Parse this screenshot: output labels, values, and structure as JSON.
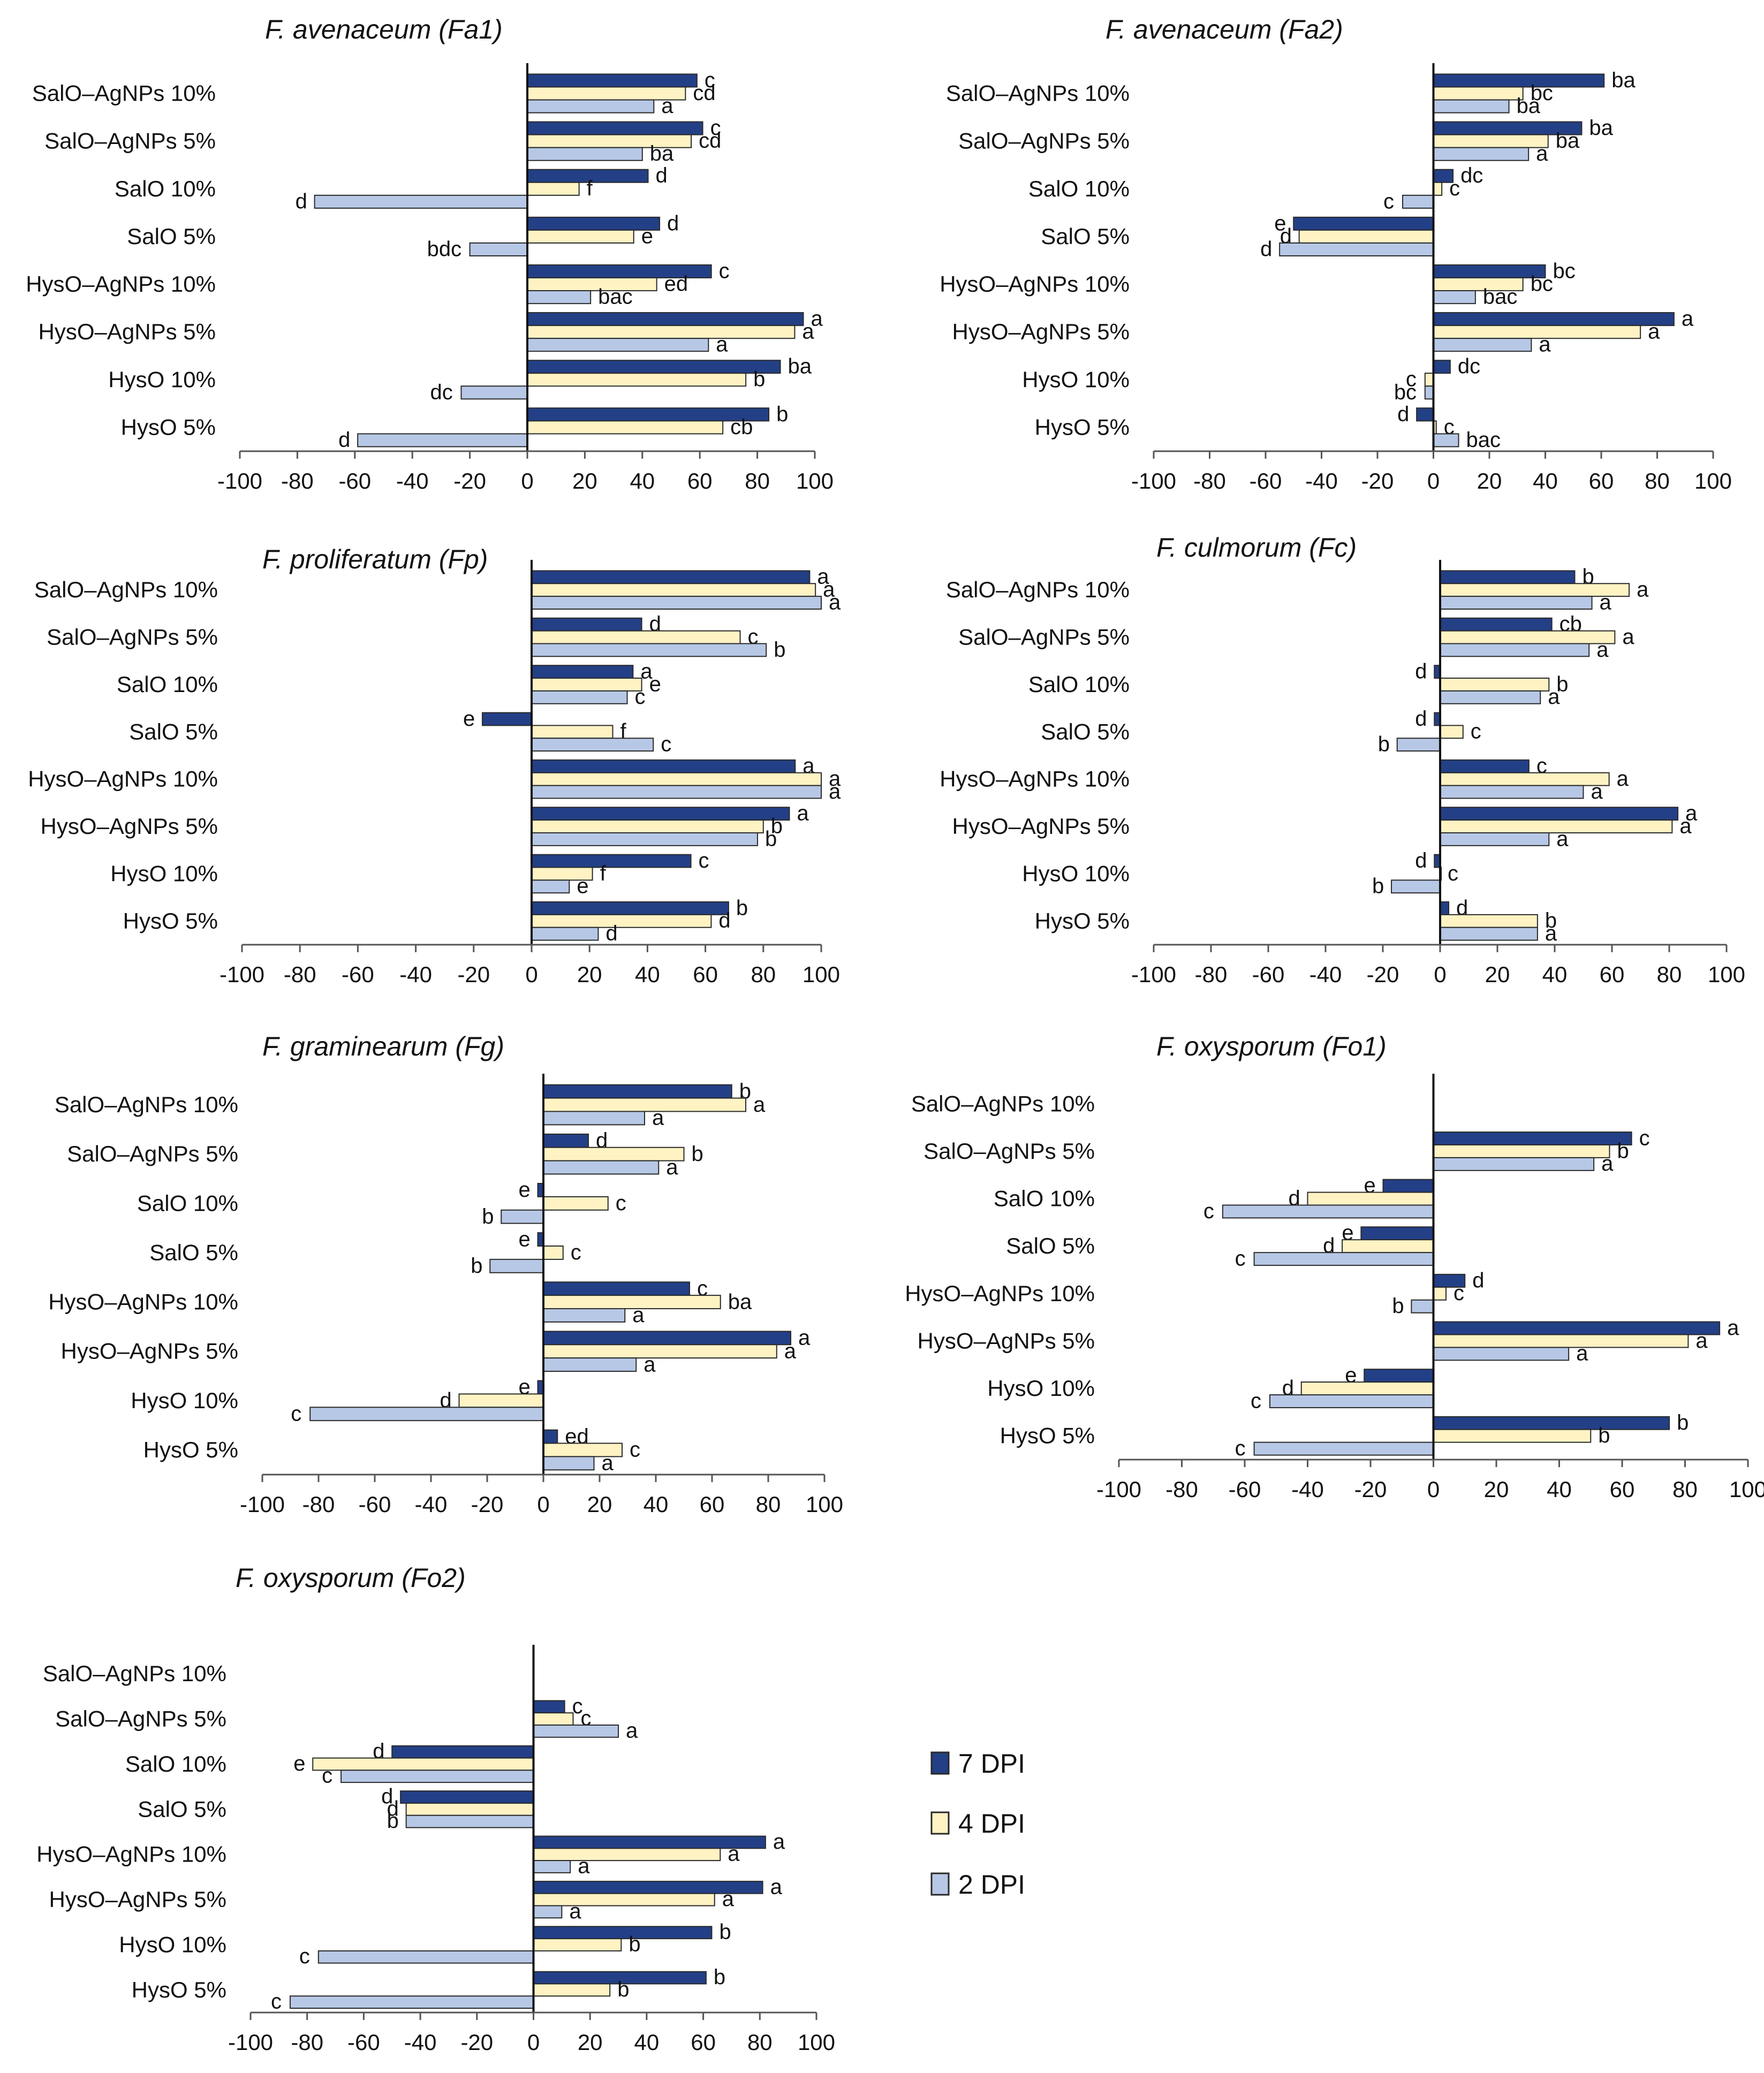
{
  "colors": {
    "7 DPI": "#233f86",
    "4 DPI": "#fff3c4",
    "2 DPI": "#b7c8e6",
    "border": "#2a2a2a"
  },
  "legend": [
    "7 DPI",
    "4 DPI",
    "2 DPI"
  ],
  "chart_data": [
    {
      "type": "bar",
      "title": "F. avenaceum (Fa1)",
      "categories": [
        "SalO–AgNPs 10%",
        "SalO–AgNPs 5%",
        "SalO 10%",
        "SalO 5%",
        "HysO–AgNPs 10%",
        "HysO–AgNPs 5%",
        "HysO 10%",
        "HysO 5%"
      ],
      "xlim": [
        -100,
        100
      ],
      "ticks": [
        -100,
        -80,
        -60,
        -40,
        -20,
        0,
        20,
        40,
        60,
        80,
        100
      ],
      "series": [
        {
          "name": "7 DPI",
          "values": [
            59,
            61,
            42,
            46,
            64,
            96,
            88,
            84
          ],
          "labels": [
            "c",
            "c",
            "d",
            "d",
            "c",
            "a",
            "ba",
            "b"
          ]
        },
        {
          "name": "4 DPI",
          "values": [
            55,
            57,
            18,
            37,
            45,
            93,
            76,
            68
          ],
          "labels": [
            "cd",
            "cd",
            "f",
            "e",
            "ed",
            "a",
            "b",
            "cb"
          ]
        },
        {
          "name": "2 DPI",
          "values": [
            44,
            40,
            -74,
            -20,
            22,
            63,
            -23,
            -59
          ],
          "labels": [
            "a",
            "ba",
            "d",
            "bdc",
            "bac",
            "a",
            "dc",
            "d"
          ]
        }
      ]
    },
    {
      "type": "bar",
      "title": "F. avenaceum (Fa2)",
      "categories": [
        "SalO–AgNPs 10%",
        "SalO–AgNPs 5%",
        "SalO 10%",
        "SalO 5%",
        "HysO–AgNPs 10%",
        "HysO–AgNPs 5%",
        "HysO 10%",
        "HysO 5%"
      ],
      "xlim": [
        -100,
        100
      ],
      "ticks": [
        -100,
        -80,
        -60,
        -40,
        -20,
        0,
        20,
        40,
        60,
        80,
        100
      ],
      "series": [
        {
          "name": "7 DPI",
          "values": [
            61,
            53,
            7,
            -50,
            40,
            86,
            6,
            -6
          ],
          "labels": [
            "ba",
            "ba",
            "dc",
            "e",
            "bc",
            "a",
            "dc",
            "d"
          ]
        },
        {
          "name": "4 DPI",
          "values": [
            32,
            41,
            3,
            -48,
            32,
            74,
            -3,
            1
          ],
          "labels": [
            "bc",
            "ba",
            "c",
            "d",
            "bc",
            "a",
            "c",
            "c"
          ]
        },
        {
          "name": "2 DPI",
          "values": [
            27,
            34,
            -11,
            -55,
            15,
            35,
            -3,
            9
          ],
          "labels": [
            "ba",
            "a",
            "c",
            "d",
            "bac",
            "a",
            "bc",
            "bac"
          ]
        }
      ]
    },
    {
      "type": "bar",
      "title": "F. proliferatum (Fp)",
      "categories": [
        "SalO–AgNPs 10%",
        "SalO–AgNPs 5%",
        "SalO 10%",
        "SalO 5%",
        "HysO–AgNPs 10%",
        "HysO–AgNPs 5%",
        "HysO 10%",
        "HysO 5%"
      ],
      "xlim": [
        -100,
        100
      ],
      "ticks": [
        -100,
        -80,
        -60,
        -40,
        -20,
        0,
        20,
        40,
        60,
        80,
        100
      ],
      "series": [
        {
          "name": "7 DPI",
          "values": [
            96,
            38,
            35,
            -17,
            91,
            89,
            55,
            68
          ],
          "labels": [
            "a",
            "d",
            "a",
            "e",
            "a",
            "a",
            "c",
            "b"
          ]
        },
        {
          "name": "4 DPI",
          "values": [
            98,
            72,
            38,
            28,
            100,
            80,
            21,
            62
          ],
          "labels": [
            "a",
            "c",
            "e",
            "f",
            "a",
            "b",
            "f",
            "d"
          ]
        },
        {
          "name": "2 DPI",
          "values": [
            100,
            81,
            33,
            42,
            100,
            78,
            13,
            23
          ],
          "labels": [
            "a",
            "b",
            "c",
            "c",
            "a",
            "b",
            "e",
            "d"
          ]
        }
      ]
    },
    {
      "type": "bar",
      "title": "F. culmorum (Fc)",
      "categories": [
        "SalO–AgNPs 10%",
        "SalO–AgNPs 5%",
        "SalO 10%",
        "SalO 5%",
        "HysO–AgNPs 10%",
        "HysO–AgNPs 5%",
        "HysO 10%",
        "HysO 5%"
      ],
      "xlim": [
        -100,
        100
      ],
      "ticks": [
        -100,
        -80,
        -60,
        -40,
        -20,
        0,
        20,
        40,
        60,
        80,
        100
      ],
      "series": [
        {
          "name": "7 DPI",
          "values": [
            47,
            39,
            -2,
            -2,
            31,
            83,
            -2,
            3
          ],
          "labels": [
            "b",
            "cb",
            "d",
            "d",
            "c",
            "a",
            "d",
            "d"
          ]
        },
        {
          "name": "4 DPI",
          "values": [
            66,
            61,
            38,
            8,
            59,
            81,
            0,
            34
          ],
          "labels": [
            "a",
            "a",
            "b",
            "c",
            "a",
            "a",
            "c",
            "b"
          ]
        },
        {
          "name": "2 DPI",
          "values": [
            53,
            52,
            35,
            -15,
            50,
            38,
            -17,
            34
          ],
          "labels": [
            "a",
            "a",
            "a",
            "b",
            "a",
            "a",
            "b",
            "a"
          ]
        }
      ]
    },
    {
      "type": "bar",
      "title": "F. graminearum (Fg)",
      "categories": [
        "SalO–AgNPs 10%",
        "SalO–AgNPs 5%",
        "SalO 10%",
        "SalO 5%",
        "HysO–AgNPs 10%",
        "HysO–AgNPs 5%",
        "HysO 10%",
        "HysO 5%"
      ],
      "xlim": [
        -100,
        100
      ],
      "ticks": [
        -100,
        -80,
        -60,
        -40,
        -20,
        0,
        20,
        40,
        60,
        80,
        100
      ],
      "series": [
        {
          "name": "7 DPI",
          "values": [
            67,
            16,
            -2,
            -2,
            52,
            88,
            -2,
            5
          ],
          "labels": [
            "b",
            "d",
            "e",
            "e",
            "c",
            "a",
            "e",
            "ed"
          ]
        },
        {
          "name": "4 DPI",
          "values": [
            72,
            50,
            23,
            7,
            63,
            83,
            -30,
            28
          ],
          "labels": [
            "a",
            "b",
            "c",
            "c",
            "ba",
            "a",
            "d",
            "c"
          ]
        },
        {
          "name": "2 DPI",
          "values": [
            36,
            41,
            -15,
            -19,
            29,
            33,
            -83,
            18
          ],
          "labels": [
            "a",
            "a",
            "b",
            "b",
            "a",
            "a",
            "c",
            "a"
          ]
        }
      ]
    },
    {
      "type": "bar",
      "title": "F. oxysporum (Fo1)",
      "categories": [
        "SalO–AgNPs 10%",
        "SalO–AgNPs 5%",
        "SalO 10%",
        "SalO 5%",
        "HysO–AgNPs 10%",
        "HysO–AgNPs 5%",
        "HysO 10%",
        "HysO 5%"
      ],
      "xlim": [
        -100,
        100
      ],
      "ticks": [
        -100,
        -80,
        -60,
        -40,
        -20,
        0,
        20,
        40,
        60,
        80,
        100
      ],
      "series": [
        {
          "name": "7 DPI",
          "values": [
            null,
            63,
            -16,
            -23,
            10,
            91,
            -22,
            75
          ],
          "labels": [
            "",
            "c",
            "e",
            "e",
            "d",
            "a",
            "e",
            "b"
          ]
        },
        {
          "name": "4 DPI",
          "values": [
            null,
            56,
            -40,
            -29,
            4,
            81,
            -42,
            50
          ],
          "labels": [
            "",
            "b",
            "d",
            "d",
            "c",
            "a",
            "d",
            "b"
          ]
        },
        {
          "name": "2 DPI",
          "values": [
            null,
            51,
            -67,
            -57,
            -7,
            43,
            -52,
            -57
          ],
          "labels": [
            "",
            "a",
            "c",
            "c",
            "b",
            "a",
            "c",
            "c"
          ]
        }
      ]
    },
    {
      "type": "bar",
      "title": "F. oxysporum (Fo2)",
      "categories": [
        "SalO–AgNPs 10%",
        "SalO–AgNPs 5%",
        "SalO 10%",
        "SalO 5%",
        "HysO–AgNPs 10%",
        "HysO–AgNPs 5%",
        "HysO 10%",
        "HysO 5%"
      ],
      "xlim": [
        -100,
        100
      ],
      "ticks": [
        -100,
        -80,
        -60,
        -40,
        -20,
        0,
        20,
        40,
        60,
        80,
        100
      ],
      "series": [
        {
          "name": "7 DPI",
          "values": [
            null,
            11,
            -50,
            -47,
            82,
            81,
            63,
            61
          ],
          "labels": [
            "",
            "c",
            "d",
            "d",
            "a",
            "a",
            "b",
            "b"
          ]
        },
        {
          "name": "4 DPI",
          "values": [
            null,
            14,
            -78,
            -45,
            66,
            64,
            31,
            27
          ],
          "labels": [
            "",
            "c",
            "e",
            "d",
            "a",
            "a",
            "b",
            "b"
          ]
        },
        {
          "name": "2 DPI",
          "values": [
            null,
            30,
            -68,
            -45,
            13,
            10,
            -76,
            -86
          ],
          "labels": [
            "",
            "a",
            "c",
            "b",
            "a",
            "a",
            "c",
            "c"
          ]
        }
      ]
    }
  ]
}
